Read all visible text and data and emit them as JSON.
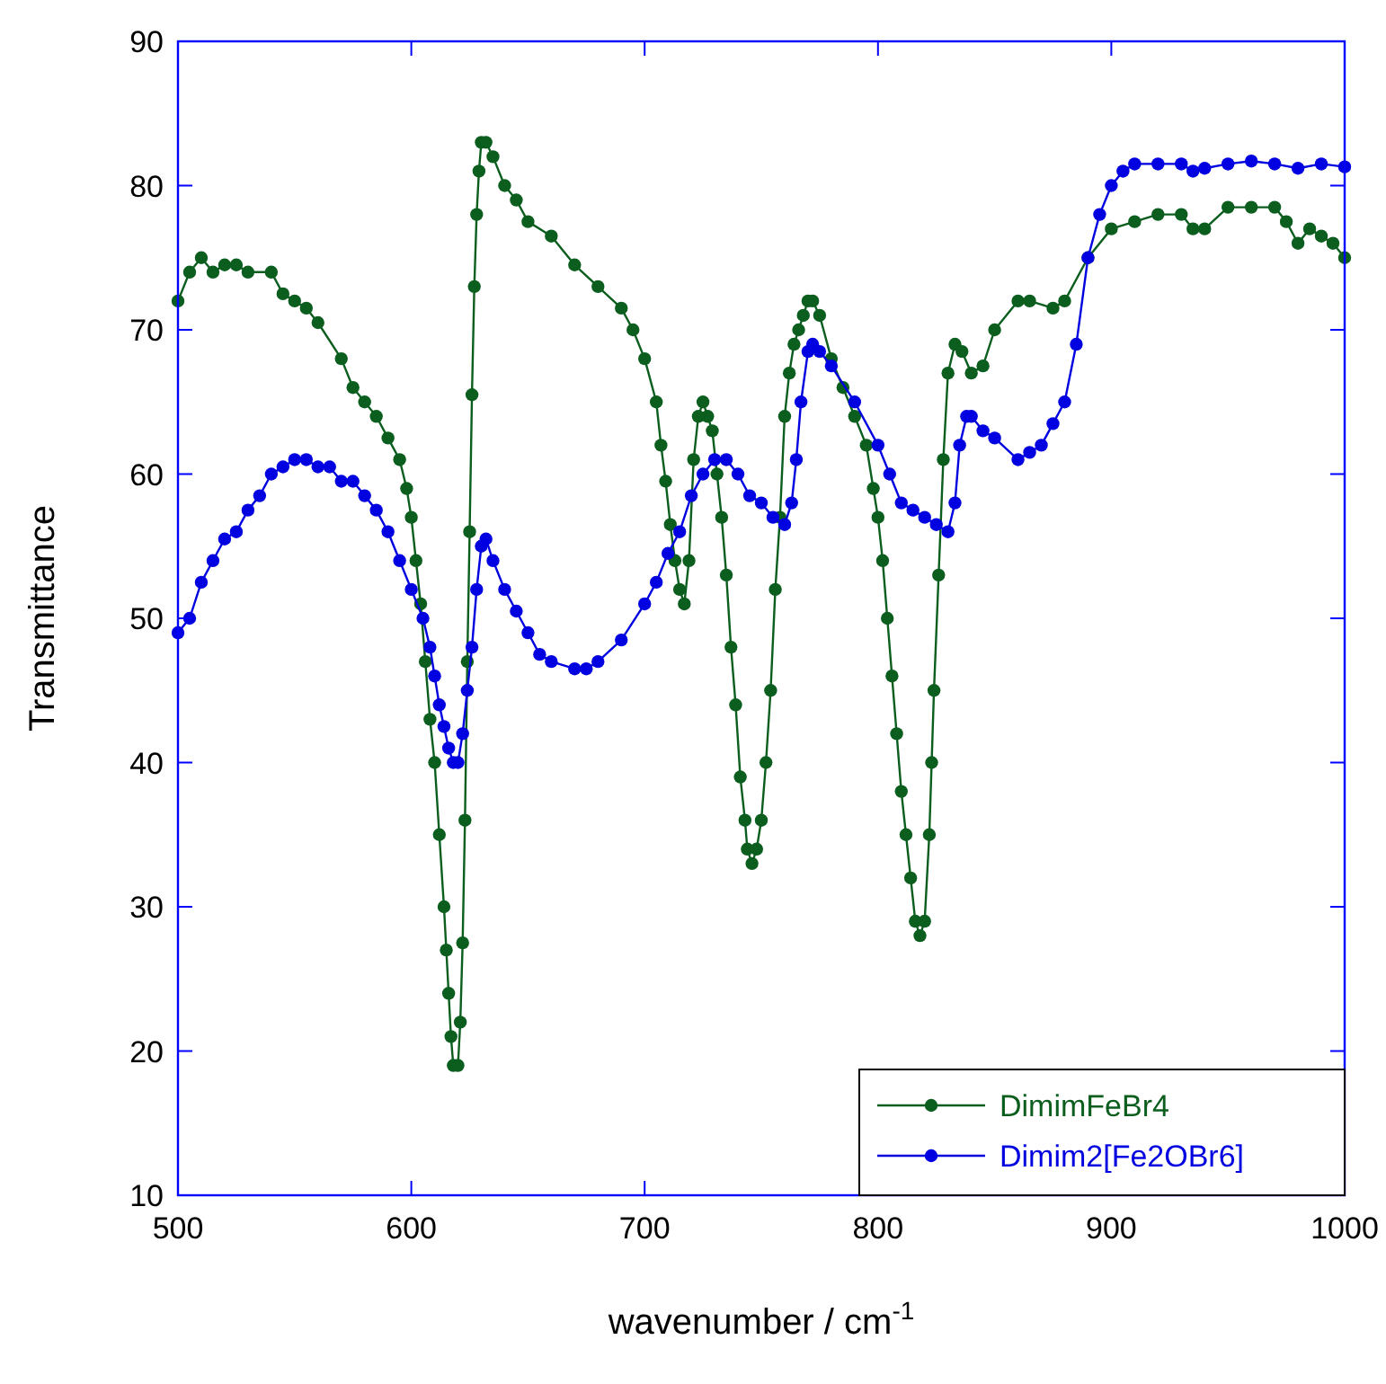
{
  "chart_data": {
    "type": "line",
    "xlabel": "wavenumber / cm$^{-1}$",
    "ylabel": "Transmittance",
    "xlim": [
      500,
      1000
    ],
    "ylim": [
      10,
      90
    ],
    "xticks": [
      500,
      600,
      700,
      800,
      900,
      1000
    ],
    "yticks": [
      10,
      20,
      30,
      40,
      50,
      60,
      70,
      80,
      90
    ],
    "grid": false,
    "legend": "bottom right",
    "marker": "circle",
    "line_style": "solid",
    "series": [
      {
        "name": "DimimFeBr4",
        "color": "#0b5e1e",
        "x": [
          500,
          505,
          510,
          515,
          520,
          525,
          530,
          540,
          545,
          550,
          555,
          560,
          570,
          575,
          580,
          585,
          590,
          595,
          598,
          600,
          602,
          604,
          606,
          608,
          610,
          612,
          614,
          615,
          616,
          617,
          618,
          620,
          621,
          622,
          623,
          624,
          625,
          626,
          627,
          628,
          629,
          630,
          632,
          635,
          640,
          645,
          650,
          660,
          670,
          680,
          690,
          695,
          700,
          705,
          707,
          709,
          711,
          713,
          715,
          717,
          719,
          721,
          723,
          725,
          727,
          729,
          731,
          733,
          735,
          737,
          739,
          741,
          743,
          744,
          746,
          748,
          750,
          752,
          754,
          756,
          758,
          760,
          762,
          764,
          766,
          768,
          770,
          772,
          775,
          780,
          785,
          790,
          795,
          798,
          800,
          802,
          804,
          806,
          808,
          810,
          812,
          814,
          816,
          818,
          820,
          822,
          823,
          824,
          826,
          828,
          830,
          833,
          836,
          840,
          845,
          850,
          860,
          865,
          875,
          880,
          890,
          900,
          910,
          920,
          930,
          935,
          940,
          950,
          960,
          970,
          975,
          980,
          985,
          990,
          995,
          1000
        ],
        "values": [
          72,
          74,
          75,
          74,
          74.5,
          74.5,
          74,
          74,
          72.5,
          72,
          71.5,
          70.5,
          68,
          66,
          65,
          64,
          62.5,
          61,
          59,
          57,
          54,
          51,
          47,
          43,
          40,
          35,
          30,
          27,
          24,
          21,
          19,
          19,
          22,
          27.5,
          36,
          47,
          56,
          65.5,
          73,
          78,
          81,
          83,
          83,
          82,
          80,
          79,
          77.5,
          76.5,
          74.5,
          73,
          71.5,
          70,
          68,
          65,
          62,
          59.5,
          56.5,
          54,
          52,
          51,
          54,
          61,
          64,
          65,
          64,
          63,
          60,
          57,
          53,
          48,
          44,
          39,
          36,
          34,
          33,
          34,
          36,
          40,
          45,
          52,
          57,
          64,
          67,
          69,
          70,
          71,
          72,
          72,
          71,
          68,
          66,
          64,
          62,
          59,
          57,
          54,
          50,
          46,
          42,
          38,
          35,
          32,
          29,
          28,
          29,
          35,
          40,
          45,
          53,
          61,
          67,
          69,
          68.5,
          67,
          67.5,
          70,
          72,
          72,
          71.5,
          72,
          75,
          77,
          77.5,
          78,
          78,
          77,
          77,
          78.5,
          78.5,
          78.5,
          77.5,
          76,
          77,
          76.5,
          76,
          75
        ]
      },
      {
        "name": "Dimim2[Fe2OBr6]",
        "color": "#0000e0",
        "x": [
          500,
          505,
          510,
          515,
          520,
          525,
          530,
          535,
          540,
          545,
          550,
          555,
          560,
          565,
          570,
          575,
          580,
          585,
          590,
          595,
          600,
          605,
          608,
          610,
          612,
          614,
          616,
          618,
          620,
          622,
          624,
          626,
          628,
          630,
          632,
          635,
          640,
          645,
          650,
          655,
          660,
          670,
          675,
          680,
          690,
          700,
          705,
          710,
          715,
          720,
          725,
          730,
          735,
          740,
          745,
          750,
          755,
          760,
          763,
          765,
          767,
          770,
          772,
          775,
          780,
          790,
          800,
          805,
          810,
          815,
          820,
          825,
          830,
          833,
          835,
          838,
          840,
          845,
          850,
          860,
          865,
          870,
          875,
          880,
          885,
          890,
          895,
          900,
          905,
          910,
          920,
          930,
          935,
          940,
          950,
          960,
          970,
          980,
          990,
          1000
        ],
        "values": [
          49,
          50,
          52.5,
          54,
          55.5,
          56,
          57.5,
          58.5,
          60,
          60.5,
          61,
          61,
          60.5,
          60.5,
          59.5,
          59.5,
          58.5,
          57.5,
          56,
          54,
          52,
          50,
          48,
          46,
          44,
          42.5,
          41,
          40,
          40,
          42,
          45,
          48,
          52,
          55,
          55.5,
          54,
          52,
          50.5,
          49,
          47.5,
          47,
          46.5,
          46.5,
          47,
          48.5,
          51,
          52.5,
          54.5,
          56,
          58.5,
          60,
          61,
          61,
          60,
          58.5,
          58,
          57,
          56.5,
          58,
          61,
          65,
          68.5,
          69,
          68.5,
          67.5,
          65,
          62,
          60,
          58,
          57.5,
          57,
          56.5,
          56,
          58,
          62,
          64,
          64,
          63,
          62.5,
          61,
          61.5,
          62,
          63.5,
          65,
          69,
          75,
          78,
          80,
          81,
          81.5,
          81.5,
          81.5,
          81,
          81.2,
          81.5,
          81.7,
          81.5,
          81.2,
          81.5,
          81.3
        ]
      }
    ]
  }
}
